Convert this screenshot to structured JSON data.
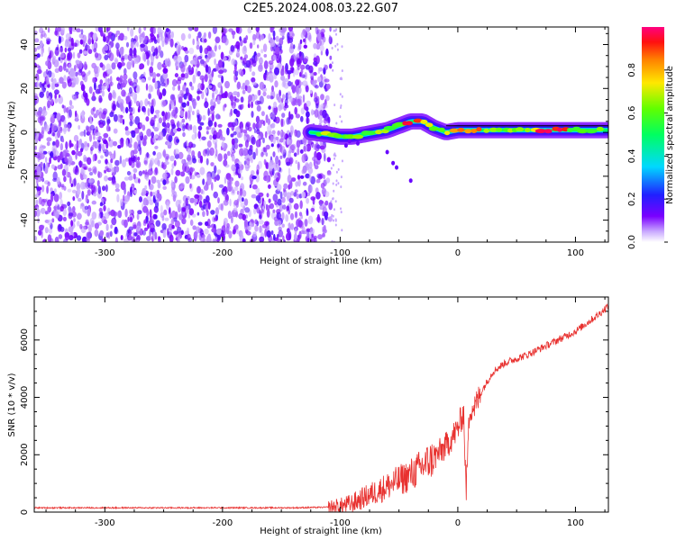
{
  "title": "C2E5.2024.008.03.22.G07",
  "colors": {
    "snr_line": "#e8312f",
    "axes": "#000000"
  },
  "chart_data": [
    {
      "type": "heatmap",
      "xlabel": "Height of straight line (km)",
      "ylabel": "Frequency (Hz)",
      "xlim": [
        -360,
        128
      ],
      "ylim": [
        -50,
        48
      ],
      "x_ticks": [
        -300,
        -200,
        -100,
        0,
        100
      ],
      "x_tick_labels": [
        "-300",
        "-200",
        "-100",
        "0",
        "100"
      ],
      "y_ticks": [
        -40,
        -20,
        0,
        20,
        40
      ],
      "y_tick_labels": [
        "-40",
        "-20",
        "0",
        "20",
        "40"
      ],
      "colorbar": {
        "label": "Normalized spectral amplitude",
        "range": [
          0,
          1
        ],
        "ticks": [
          0.0,
          0.2,
          0.4,
          0.6,
          0.8
        ],
        "tick_labels": [
          "0.0",
          "0.2",
          "0.4",
          "0.6",
          "0.8"
        ],
        "colormap": "rainbow"
      },
      "noise_region_x": [
        -360,
        -108
      ],
      "signal_track": [
        {
          "x": -125,
          "f": 0
        },
        {
          "x": -110,
          "f": -1
        },
        {
          "x": -100,
          "f": -2
        },
        {
          "x": -90,
          "f": -2
        },
        {
          "x": -80,
          "f": -1
        },
        {
          "x": -70,
          "f": 0
        },
        {
          "x": -60,
          "f": 1
        },
        {
          "x": -50,
          "f": 3
        },
        {
          "x": -40,
          "f": 5
        },
        {
          "x": -30,
          "f": 5
        },
        {
          "x": -20,
          "f": 2
        },
        {
          "x": -10,
          "f": 0
        },
        {
          "x": 0,
          "f": 1
        },
        {
          "x": 20,
          "f": 1
        },
        {
          "x": 50,
          "f": 1
        },
        {
          "x": 80,
          "f": 1
        },
        {
          "x": 100,
          "f": 1
        },
        {
          "x": 128,
          "f": 1
        }
      ]
    },
    {
      "type": "line",
      "xlabel": "Height of straight line (km)",
      "ylabel": "SNR (10 * v/v)",
      "xlim": [
        -360,
        128
      ],
      "ylim": [
        0,
        7500
      ],
      "x_ticks": [
        -300,
        -200,
        -100,
        0,
        100
      ],
      "x_tick_labels": [
        "-300",
        "-200",
        "-100",
        "0",
        "100"
      ],
      "y_ticks": [
        0,
        2000,
        4000,
        6000
      ],
      "y_tick_labels": [
        "0",
        "2000",
        "4000",
        "6000"
      ],
      "series": [
        {
          "x": [
            -360,
            -300,
            -200,
            -140,
            -110,
            -100,
            -90,
            -80,
            -70,
            -60,
            -50,
            -40,
            -30,
            -20,
            -10,
            0,
            5,
            7,
            10,
            15,
            20,
            30,
            40,
            60,
            80,
            100,
            120,
            128
          ],
          "values": [
            150,
            150,
            150,
            150,
            170,
            200,
            300,
            500,
            700,
            900,
            1100,
            1300,
            1600,
            1900,
            2300,
            2900,
            3500,
            700,
            3600,
            3700,
            4200,
            4900,
            5200,
            5500,
            5900,
            6300,
            6900,
            7200
          ]
        }
      ]
    }
  ]
}
